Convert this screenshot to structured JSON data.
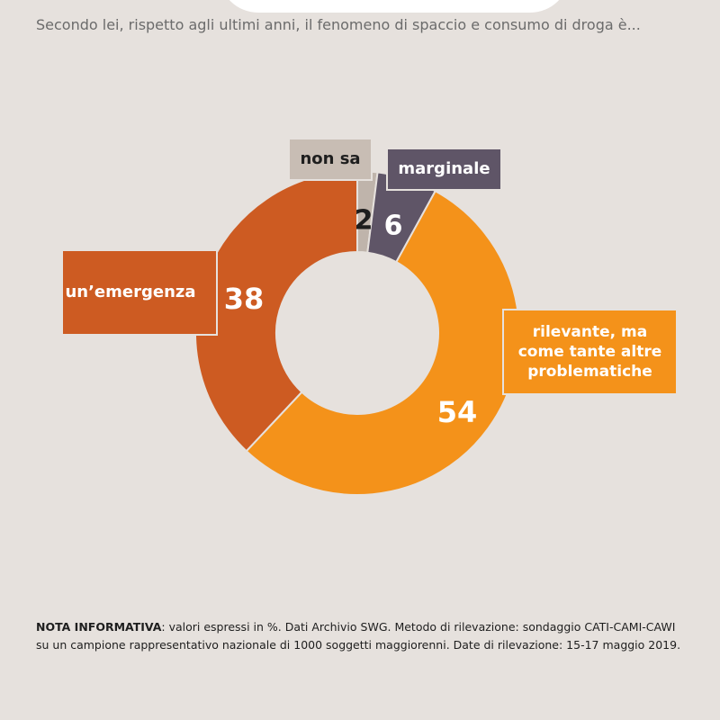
{
  "question": "Secondo lei, rispetto agli ultimi anni, il fenomeno di spaccio e consumo di droga è...",
  "chart_data": {
    "type": "pie",
    "variant": "donut",
    "unit": "%",
    "slices": [
      {
        "key": "nonsa",
        "label": "non sa",
        "value": 2,
        "color": "#bfb4ab",
        "value_color": "#1e1e1e"
      },
      {
        "key": "marginale",
        "label": "marginale",
        "value": 6,
        "color": "#5f5567",
        "value_color": "#ffffff"
      },
      {
        "key": "rilevante",
        "label": "rilevante, ma\ncome tante altre\nproblematiche",
        "value": 54,
        "color": "#f4921a",
        "value_color": "#ffffff"
      },
      {
        "key": "emergenza",
        "label": "un’emergenza",
        "value": 38,
        "color": "#cd5b22",
        "value_color": "#ffffff"
      }
    ]
  },
  "footnote": {
    "label": "NOTA INFORMATIVA",
    "text": ": valori espressi in %. Dati Archivio SWG. Metodo di rilevazione: sondaggio CATI-CAMI-CAWI su un campione rappresentativo nazionale di 1000 soggetti maggiorenni. Date di rilevazione: 15-17 maggio 2019."
  },
  "colors": {
    "background": "#e6e1dd",
    "emergenza": "#cd5b22",
    "rilevante": "#f4921a",
    "marginale": "#5f5567",
    "nonsa": "#bfb4ab"
  }
}
